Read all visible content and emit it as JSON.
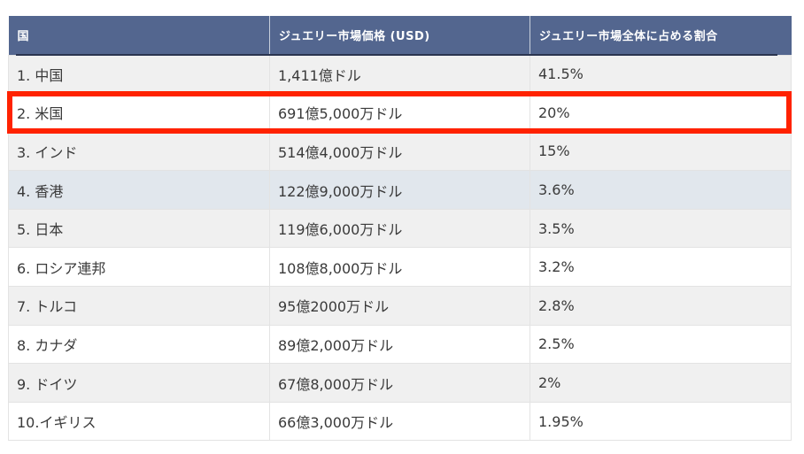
{
  "table": {
    "headers": [
      "国",
      "ジュエリー市場価格 (USD)",
      "ジュエリー市場全体に占める割合"
    ],
    "rows": [
      {
        "country": "1. 中国",
        "price": "1,411億ドル",
        "share": "41.5%"
      },
      {
        "country": "2. 米国",
        "price": "691億5,000万ドル",
        "share": "20%"
      },
      {
        "country": "3. インド",
        "price": "514億4,000万ドル",
        "share": "15%"
      },
      {
        "country": "4. 香港",
        "price": "122億9,000万ドル",
        "share": "3.6%"
      },
      {
        "country": "5. 日本",
        "price": "119億6,000万ドル",
        "share": "3.5%"
      },
      {
        "country": "6. ロシア連邦",
        "price": "108億8,000万ドル",
        "share": "3.2%"
      },
      {
        "country": "7. トルコ",
        "price": "95億2000万ドル",
        "share": "2.8%"
      },
      {
        "country": "8. カナダ",
        "price": "89億2,000万ドル",
        "share": "2.5%"
      },
      {
        "country": "9. ドイツ",
        "price": "67億8,000万ドル",
        "share": "2%"
      },
      {
        "country": "10.イギリス",
        "price": "66億3,000万ドル",
        "share": "1.95%"
      }
    ]
  },
  "colors": {
    "header_bg": "#53668f",
    "highlight": "#ff2200",
    "row_grey": "#f0f0f0",
    "row_blue": "#e1e7ed"
  }
}
